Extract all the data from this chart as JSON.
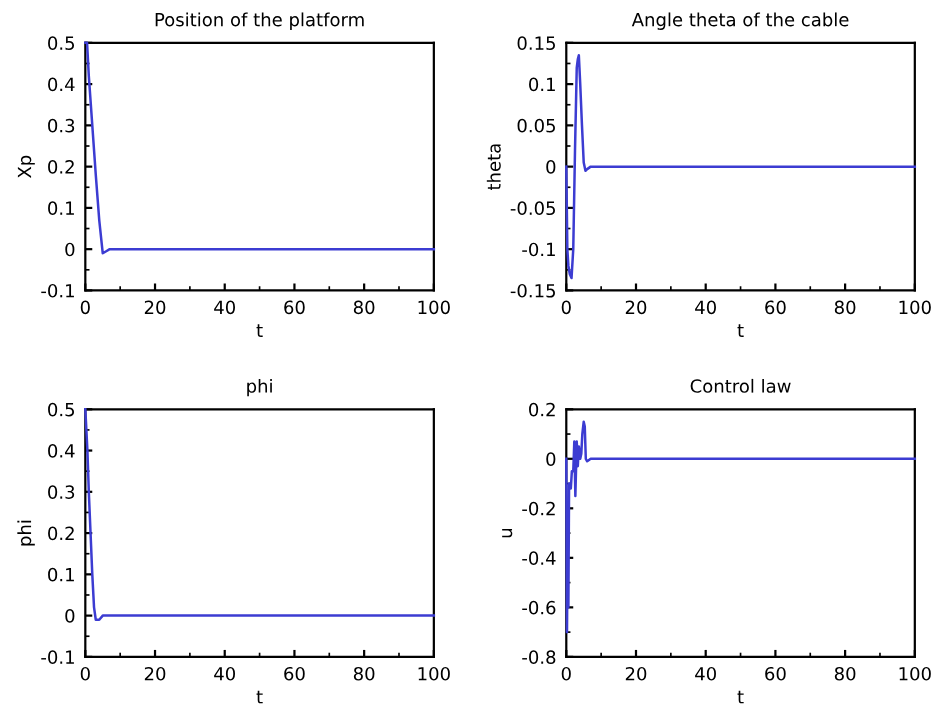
{
  "chart_data": [
    {
      "type": "line",
      "title": "Position of the platform",
      "xlabel": "t",
      "ylabel": "Xp",
      "xlim": [
        0,
        100
      ],
      "xticks": [
        0,
        20,
        40,
        60,
        80,
        100
      ],
      "ylim": [
        -0.1,
        0.5
      ],
      "yticks": [
        -0.1,
        0,
        0.1,
        0.2,
        0.3,
        0.4,
        0.5
      ],
      "grid": false,
      "legend": false,
      "series": [
        {
          "color": "#3c3cd2",
          "x": [
            0,
            0.5,
            1,
            2,
            3,
            4,
            5,
            6,
            7,
            10,
            100
          ],
          "values": [
            0.5,
            0.5,
            0.42,
            0.3,
            0.18,
            0.07,
            -0.01,
            -0.005,
            0,
            0,
            0
          ]
        }
      ]
    },
    {
      "type": "line",
      "title": "Angle theta of the cable",
      "xlabel": "t",
      "ylabel": "theta",
      "xlim": [
        0,
        100
      ],
      "xticks": [
        0,
        20,
        40,
        60,
        80,
        100
      ],
      "ylim": [
        -0.15,
        0.15
      ],
      "yticks": [
        -0.15,
        -0.1,
        -0.05,
        0,
        0.05,
        0.1,
        0.15
      ],
      "grid": false,
      "legend": false,
      "series": [
        {
          "color": "#3c3cd2",
          "x": [
            0,
            0.3,
            0.6,
            1,
            1.5,
            2,
            2.5,
            3,
            3.3,
            3.6,
            4,
            4.5,
            5,
            5.5,
            6,
            7,
            10,
            100
          ],
          "values": [
            0,
            -0.1,
            -0.12,
            -0.13,
            -0.135,
            -0.1,
            0.02,
            0.12,
            0.13,
            0.135,
            0.1,
            0.05,
            0.005,
            -0.005,
            -0.003,
            0,
            0,
            0
          ]
        }
      ]
    },
    {
      "type": "line",
      "title": "phi",
      "xlabel": "t",
      "ylabel": "phi",
      "xlim": [
        0,
        100
      ],
      "xticks": [
        0,
        20,
        40,
        60,
        80,
        100
      ],
      "ylim": [
        -0.1,
        0.5
      ],
      "yticks": [
        -0.1,
        0,
        0.1,
        0.2,
        0.3,
        0.4,
        0.5
      ],
      "grid": false,
      "legend": false,
      "series": [
        {
          "color": "#3c3cd2",
          "x": [
            0,
            0.3,
            0.6,
            1,
            1.5,
            2,
            2.5,
            3,
            4,
            5,
            7,
            100
          ],
          "values": [
            0.5,
            0.45,
            0.4,
            0.3,
            0.2,
            0.1,
            0.02,
            -0.01,
            -0.01,
            0,
            0,
            0
          ]
        }
      ]
    },
    {
      "type": "line",
      "title": "Control law",
      "xlabel": "t",
      "ylabel": "u",
      "xlim": [
        0,
        100
      ],
      "xticks": [
        0,
        20,
        40,
        60,
        80,
        100
      ],
      "ylim": [
        -0.8,
        0.2
      ],
      "yticks": [
        -0.8,
        -0.6,
        -0.4,
        -0.2,
        0,
        0.2
      ],
      "grid": false,
      "legend": false,
      "series": [
        {
          "color": "#3c3cd2",
          "x": [
            0,
            0.2,
            0.4,
            0.6,
            0.8,
            1,
            1.3,
            1.6,
            2,
            2.3,
            2.6,
            3,
            3.3,
            3.6,
            4,
            4.3,
            4.6,
            5,
            5.3,
            5.6,
            6,
            7,
            100
          ],
          "values": [
            0,
            -0.7,
            -0.3,
            -0.6,
            -0.1,
            -0.1,
            -0.12,
            -0.05,
            -0.05,
            0.07,
            -0.15,
            0.07,
            -0.03,
            0.05,
            0,
            0.02,
            0.1,
            0.15,
            0.13,
            0,
            -0.01,
            0,
            0
          ]
        }
      ]
    }
  ]
}
